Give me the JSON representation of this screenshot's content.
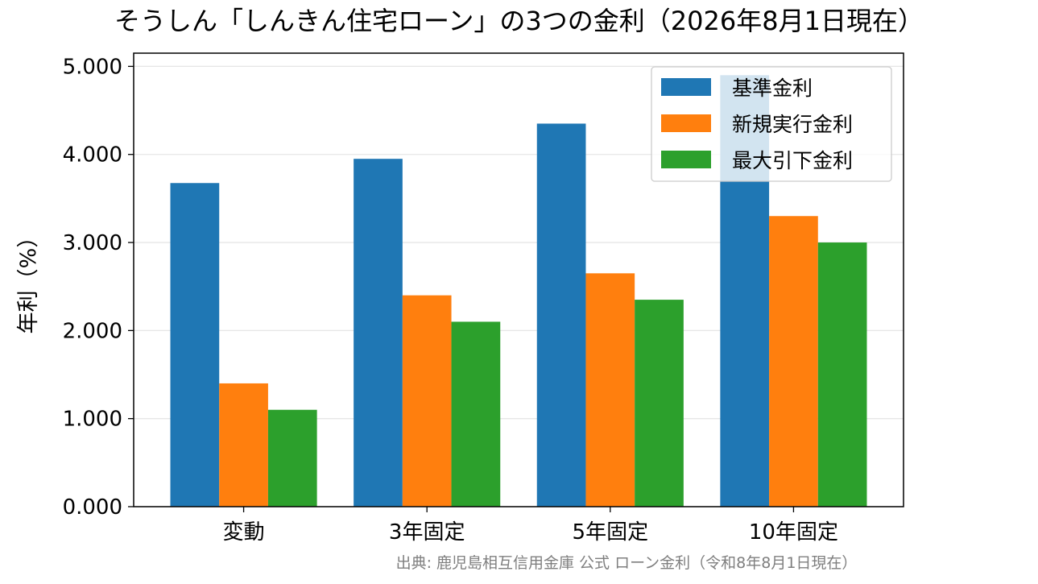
{
  "title": "そうしん「しんきん住宅ローン」の3つの金利（2026年8月1日現在）",
  "source_note": "出典: 鹿児島相互信用金庫 公式 ローン金利（令和8年8月1日現在）",
  "chart_data": {
    "type": "bar",
    "title": "そうしん「しんきん住宅ローン」の3つの金利（2026年8月1日現在）",
    "xlabel": "",
    "ylabel": "年利（%）",
    "categories": [
      "変動",
      "3年固定",
      "5年固定",
      "10年固定"
    ],
    "series": [
      {
        "name": "基準金利",
        "color": "#1f77b4",
        "values": [
          3.675,
          3.95,
          4.35,
          4.9
        ]
      },
      {
        "name": "新規実行金利",
        "color": "#ff7f0e",
        "values": [
          1.4,
          2.4,
          2.65,
          3.3
        ]
      },
      {
        "name": "最大引下金利",
        "color": "#2ca02c",
        "values": [
          1.1,
          2.1,
          2.35,
          3.0
        ]
      }
    ],
    "ylim": [
      0,
      5.15
    ],
    "yticks": [
      "0.000",
      "1.000",
      "2.000",
      "3.000",
      "4.000",
      "5.000"
    ],
    "grid": "horizontal",
    "legend": "top-right"
  }
}
